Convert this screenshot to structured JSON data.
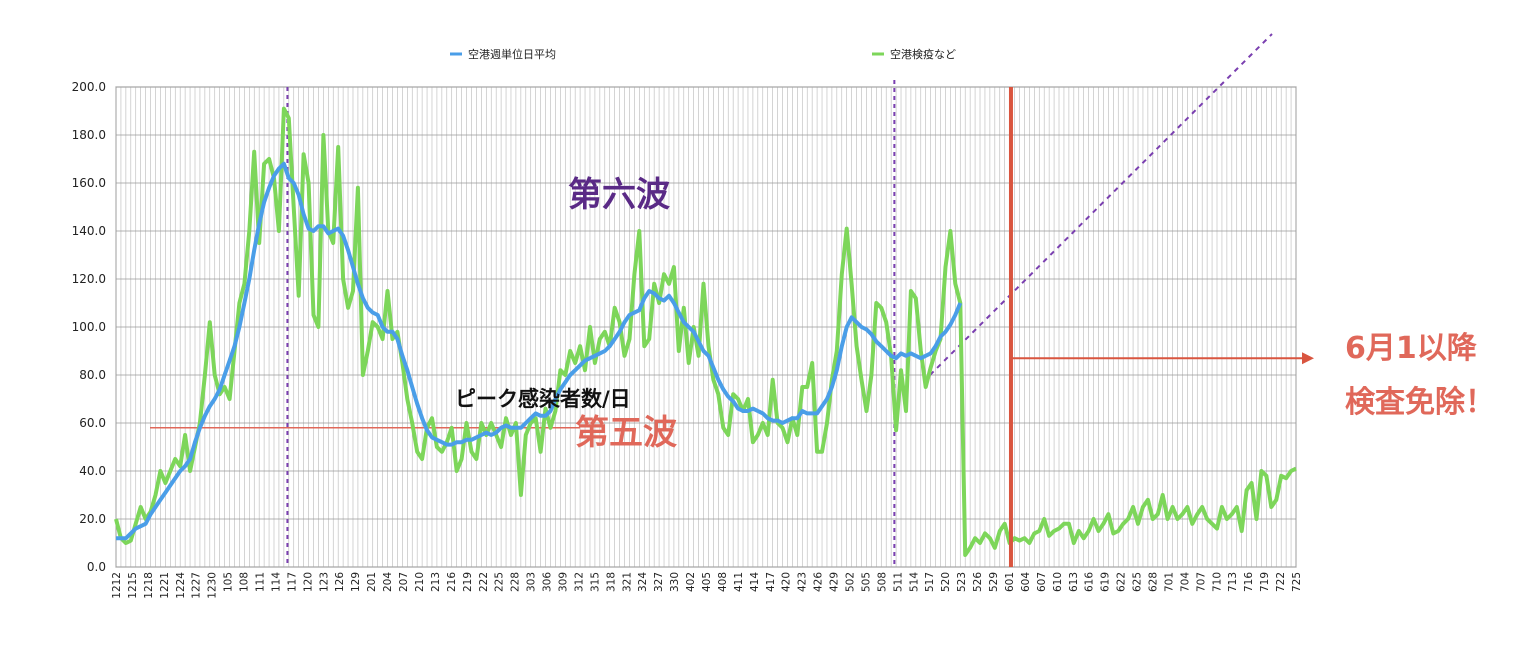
{
  "chart_data": {
    "type": "line",
    "title": "",
    "xlabel": "",
    "ylabel": "",
    "ylim": [
      0,
      200
    ],
    "yticks": [
      "0.0",
      "20.0",
      "40.0",
      "60.0",
      "80.0",
      "100.0",
      "120.0",
      "140.0",
      "160.0",
      "180.0",
      "200.0"
    ],
    "grid": true,
    "legend_position": "top",
    "x_tick_labels": [
      "1212",
      "1215",
      "1218",
      "1221",
      "1224",
      "1227",
      "1230",
      "105",
      "108",
      "111",
      "114",
      "117",
      "120",
      "123",
      "126",
      "129",
      "201",
      "204",
      "207",
      "210",
      "213",
      "216",
      "219",
      "222",
      "225",
      "228",
      "303",
      "306",
      "309",
      "312",
      "315",
      "318",
      "321",
      "324",
      "327",
      "330",
      "402",
      "405",
      "408",
      "411",
      "414",
      "417",
      "420",
      "423",
      "426",
      "429",
      "502",
      "505",
      "508",
      "511",
      "514",
      "517",
      "520",
      "523",
      "526",
      "529",
      "601",
      "604",
      "607",
      "610",
      "613",
      "616",
      "619",
      "622",
      "625",
      "628",
      "701",
      "704",
      "707",
      "710",
      "713",
      "716",
      "719",
      "722",
      "725"
    ],
    "series": [
      {
        "name": "空港週単位日平均",
        "color": "#4a9ee8",
        "values": [
          12.0,
          12.0,
          12.0,
          14.0,
          16.0,
          17.0,
          18.0,
          22.0,
          25.0,
          28.0,
          31.0,
          34.0,
          37.0,
          40.0,
          42.0,
          45.0,
          52.0,
          58.0,
          63.0,
          67.0,
          70.0,
          74.0,
          80.0,
          86.0,
          92.0,
          100.0,
          110.0,
          120.0,
          132.0,
          143.0,
          152.0,
          158.0,
          163.0,
          166.0,
          168.0,
          162.0,
          160.0,
          155.0,
          147.0,
          141.0,
          140.0,
          142.0,
          142.0,
          139.0,
          140.0,
          141.0,
          138.0,
          132.0,
          125.0,
          118.0,
          112.0,
          108.0,
          106.0,
          105.0,
          100.0,
          98.0,
          98.0,
          95.0,
          88.0,
          82.0,
          75.0,
          68.0,
          62.0,
          57.0,
          54.0,
          53.0,
          52.0,
          51.0,
          51.0,
          52.0,
          52.0,
          53.0,
          53.0,
          54.0,
          55.0,
          56.0,
          55.0,
          56.0,
          58.0,
          59.0,
          58.0,
          58.0,
          58.0,
          60.0,
          62.0,
          64.0,
          63.0,
          63.0,
          65.0,
          70.0,
          74.0,
          77.0,
          80.0,
          82.0,
          84.0,
          86.0,
          87.0,
          88.0,
          89.0,
          90.0,
          92.0,
          95.0,
          98.0,
          102.0,
          105.0,
          106.0,
          107.0,
          112.0,
          115.0,
          114.0,
          112.0,
          111.0,
          113.0,
          110.0,
          106.0,
          102.0,
          100.0,
          98.0,
          94.0,
          90.0,
          88.0,
          83.0,
          78.0,
          74.0,
          71.0,
          69.0,
          66.0,
          65.0,
          65.0,
          66.0,
          65.0,
          64.0,
          62.0,
          61.0,
          61.0,
          60.0,
          61.0,
          62.0,
          62.0,
          65.0,
          64.0,
          64.0,
          64.0,
          67.0,
          70.0,
          75.0,
          82.0,
          92.0,
          100.0,
          104.0,
          102.0,
          100.0,
          99.0,
          97.0,
          94.0,
          92.0,
          90.0,
          88.0,
          87.0,
          89.0,
          88.0,
          89.0,
          88.0,
          87.0,
          88.0,
          89.0,
          92.0,
          96.0,
          98.0,
          101.0,
          105.0,
          110.0
        ]
      },
      {
        "name": "空港検疫など",
        "color": "#7dd65a",
        "values": [
          20.0,
          12.0,
          10.0,
          11.0,
          18.0,
          25.0,
          20.0,
          23.0,
          30.0,
          40.0,
          35.0,
          40.0,
          45.0,
          42.0,
          55.0,
          40.0,
          50.0,
          60.0,
          80.0,
          102.0,
          80.0,
          72.0,
          75.0,
          70.0,
          90.0,
          110.0,
          118.0,
          140.0,
          173.0,
          135.0,
          168.0,
          170.0,
          162.0,
          140.0,
          191.0,
          187.0,
          150.0,
          113.0,
          172.0,
          160.0,
          105.0,
          100.0,
          180.0,
          140.0,
          135.0,
          175.0,
          120.0,
          108.0,
          115.0,
          158.0,
          80.0,
          90.0,
          102.0,
          100.0,
          95.0,
          115.0,
          95.0,
          98.0,
          85.0,
          70.0,
          60.0,
          48.0,
          45.0,
          58.0,
          62.0,
          50.0,
          48.0,
          52.0,
          58.0,
          40.0,
          45.0,
          60.0,
          48.0,
          45.0,
          60.0,
          55.0,
          60.0,
          55.0,
          50.0,
          62.0,
          55.0,
          60.0,
          30.0,
          55.0,
          60.0,
          62.0,
          48.0,
          66.0,
          58.0,
          65.0,
          82.0,
          80.0,
          90.0,
          85.0,
          92.0,
          82.0,
          100.0,
          85.0,
          95.0,
          98.0,
          92.0,
          108.0,
          102.0,
          88.0,
          95.0,
          122.0,
          140.0,
          92.0,
          95.0,
          118.0,
          110.0,
          122.0,
          118.0,
          125.0,
          90.0,
          108.0,
          85.0,
          100.0,
          88.0,
          118.0,
          92.0,
          78.0,
          72.0,
          58.0,
          55.0,
          72.0,
          70.0,
          65.0,
          70.0,
          52.0,
          55.0,
          60.0,
          55.0,
          78.0,
          60.0,
          58.0,
          52.0,
          62.0,
          55.0,
          75.0,
          75.0,
          85.0,
          48.0,
          48.0,
          60.0,
          78.0,
          90.0,
          122.0,
          141.0,
          118.0,
          92.0,
          78.0,
          65.0,
          80.0,
          110.0,
          108.0,
          102.0,
          88.0,
          57.0,
          82.0,
          65.0,
          115.0,
          112.0,
          90.0,
          75.0,
          83.0,
          90.0,
          95.0,
          125.0,
          140.0,
          118.0,
          110.0,
          5.0,
          8.0,
          12.0,
          10.0,
          14.0,
          12.0,
          8.0,
          15.0,
          18.0,
          10.0,
          12.0,
          11.0,
          12.0,
          10.0,
          14.0,
          15.0,
          20.0,
          13.0,
          15.0,
          16.0,
          18.0,
          18.0,
          10.0,
          15.0,
          12.0,
          15.0,
          20.0,
          15.0,
          18.0,
          22.0,
          14.0,
          15.0,
          18.0,
          20.0,
          25.0,
          18.0,
          25.0,
          28.0,
          20.0,
          22.0,
          30.0,
          20.0,
          25.0,
          20.0,
          22.0,
          25.0,
          18.0,
          22.0,
          25.0,
          20.0,
          18.0,
          16.0,
          25.0,
          20.0,
          22.0,
          25.0,
          15.0,
          32.0,
          35.0,
          20.0,
          40.0,
          38.0,
          25.0,
          28.0,
          38.0,
          37.0,
          40.0,
          41.0
        ]
      }
    ],
    "reference_lines": {
      "peak_level": 58.0,
      "cutoff_x_label": "601"
    },
    "annotations": {
      "wave6": "第六波",
      "wave5": "第五波",
      "peak": "ピーク感染者数/日",
      "side_line1": "6月1以降",
      "side_line2": "検査免除！"
    }
  },
  "colors": {
    "blue_line": "#4a9ee8",
    "green_line": "#7dd65a",
    "red_line": "#d9553f",
    "purple_dash": "#7a3fb0",
    "grid": "#b8b8b8"
  }
}
